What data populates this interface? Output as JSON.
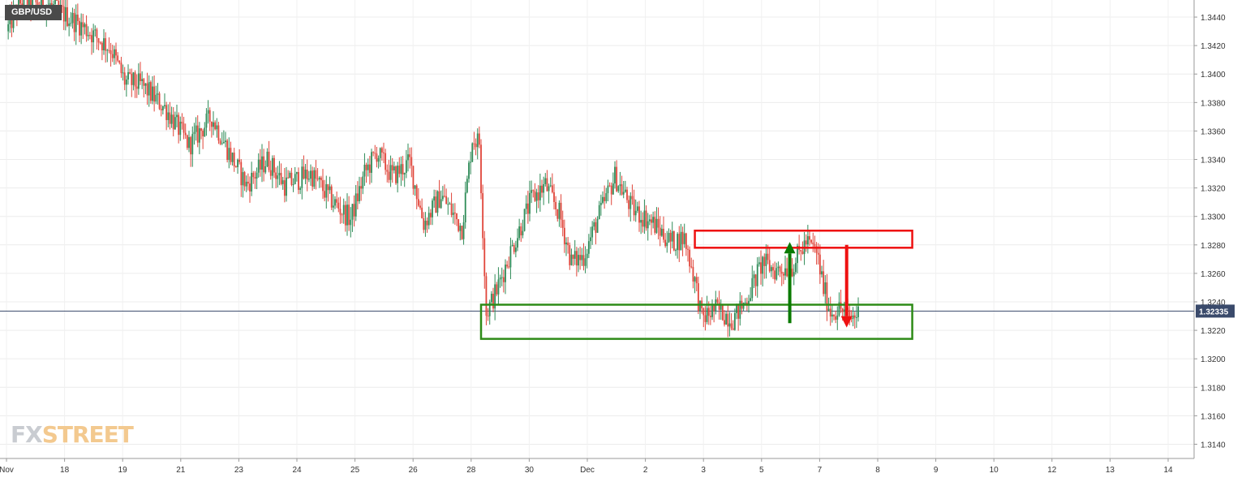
{
  "chart_data": {
    "type": "candlestick",
    "symbol": "GBP/USD",
    "current_price": "1.32335",
    "ylim": [
      1.313,
      1.3452
    ],
    "y_ticks": [
      "1.3440",
      "1.3420",
      "1.3400",
      "1.3380",
      "1.3360",
      "1.3340",
      "1.3320",
      "1.3300",
      "1.3280",
      "1.3260",
      "1.3240",
      "1.3220",
      "1.3200",
      "1.3180",
      "1.3160",
      "1.3140"
    ],
    "x_ticks": [
      "Nov",
      "18",
      "19",
      "21",
      "23",
      "24",
      "25",
      "26",
      "28",
      "30",
      "Dec",
      "2",
      "3",
      "5",
      "7",
      "8",
      "9",
      "10",
      "12",
      "13",
      "14"
    ],
    "grid": true,
    "series_path": [
      [
        0,
        1.343
      ],
      [
        8,
        1.345
      ],
      [
        25,
        1.3448
      ],
      [
        42,
        1.3435
      ],
      [
        60,
        1.3418
      ],
      [
        68,
        1.3395
      ],
      [
        78,
        1.3392
      ],
      [
        92,
        1.3375
      ],
      [
        105,
        1.335
      ],
      [
        118,
        1.337
      ],
      [
        128,
        1.3345
      ],
      [
        138,
        1.3322
      ],
      [
        150,
        1.334
      ],
      [
        160,
        1.3322
      ],
      [
        175,
        1.333
      ],
      [
        188,
        1.331
      ],
      [
        198,
        1.3298
      ],
      [
        206,
        1.333
      ],
      [
        213,
        1.3345
      ],
      [
        222,
        1.3328
      ],
      [
        232,
        1.3338
      ],
      [
        240,
        1.3295
      ],
      [
        250,
        1.3315
      ],
      [
        262,
        1.3292
      ],
      [
        268,
        1.3355
      ],
      [
        272,
        1.3352
      ],
      [
        276,
        1.3232
      ],
      [
        282,
        1.3248
      ],
      [
        290,
        1.3275
      ],
      [
        302,
        1.3312
      ],
      [
        310,
        1.3322
      ],
      [
        318,
        1.3302
      ],
      [
        325,
        1.3268
      ],
      [
        332,
        1.3272
      ],
      [
        340,
        1.3298
      ],
      [
        350,
        1.3328
      ],
      [
        360,
        1.3305
      ],
      [
        372,
        1.3295
      ],
      [
        382,
        1.3282
      ],
      [
        390,
        1.3285
      ],
      [
        396,
        1.3255
      ],
      [
        400,
        1.3228
      ],
      [
        408,
        1.3235
      ],
      [
        418,
        1.3228
      ],
      [
        425,
        1.324
      ],
      [
        435,
        1.3268
      ],
      [
        442,
        1.3262
      ],
      [
        452,
        1.3265
      ],
      [
        460,
        1.3282
      ],
      [
        466,
        1.3275
      ],
      [
        470,
        1.325
      ],
      [
        474,
        1.3233
      ],
      [
        480,
        1.3235
      ],
      [
        485,
        1.3228
      ],
      [
        490,
        1.3232
      ]
    ],
    "levels": {
      "support_zone": [
        1.3214,
        1.3238
      ],
      "resistance_zone": [
        1.3278,
        1.329
      ]
    },
    "zone_span": [
      273,
      480
    ],
    "arrows": {
      "up": {
        "x": 445,
        "from": 1.3225,
        "to": 1.3282,
        "color": "#0a7a00"
      },
      "down": {
        "x": 460,
        "from": 1.328,
        "to": 1.3222,
        "color": "#ee1111"
      }
    },
    "colors": {
      "up": "#2e8b57",
      "down": "#e0453a",
      "support": "#2e8b17",
      "resistance": "#ee1111",
      "price_line": "#3a4a6b"
    }
  },
  "logo": {
    "fx": "FX",
    "street": "STREET"
  }
}
